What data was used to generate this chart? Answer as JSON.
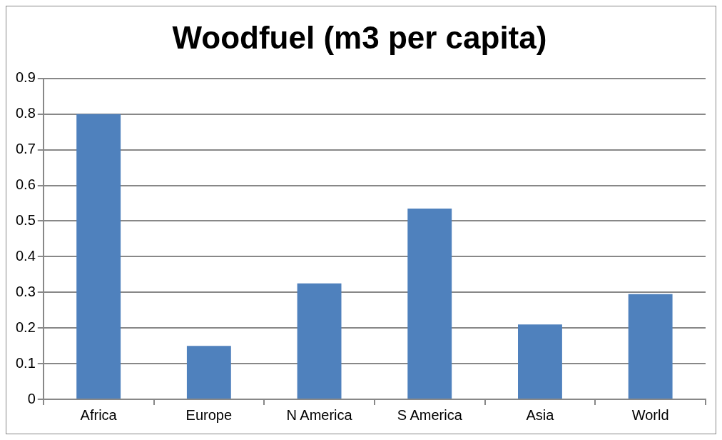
{
  "chart_data": {
    "type": "bar",
    "title": "Woodfuel (m3 per capita)",
    "categories": [
      "Africa",
      "Europe",
      "N America",
      "S America",
      "Asia",
      "World"
    ],
    "values": [
      0.8,
      0.15,
      0.325,
      0.535,
      0.21,
      0.295
    ],
    "color": "#4f81bd",
    "ylim": [
      0,
      0.9
    ],
    "yticks": [
      0,
      0.1,
      0.2,
      0.3,
      0.4,
      0.5,
      0.6,
      0.7,
      0.8,
      0.9
    ],
    "grid": "y",
    "legend": false
  }
}
